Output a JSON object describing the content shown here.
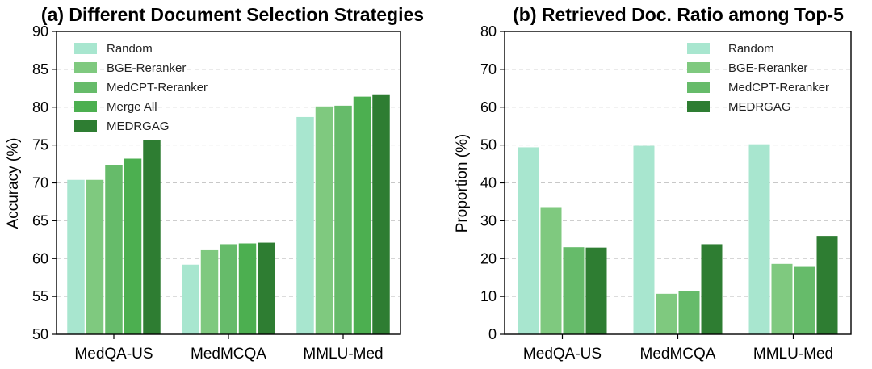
{
  "chart_data": [
    {
      "type": "bar",
      "title": "(a) Different Document Selection Strategies",
      "xlabel": "",
      "ylabel": "Accuracy (%)",
      "ylim": [
        50,
        90
      ],
      "yticks": [
        50,
        55,
        60,
        65,
        70,
        75,
        80,
        85,
        90
      ],
      "grid": true,
      "legend": "top-left",
      "categories": [
        "MedQA-US",
        "MedMCQA",
        "MMLU-Med"
      ],
      "series": [
        {
          "name": "Random",
          "color": "#a8e6cf",
          "values": [
            70.4,
            59.2,
            78.7
          ]
        },
        {
          "name": "BGE-Reranker",
          "color": "#7fc97f",
          "values": [
            70.4,
            61.1,
            80.1
          ]
        },
        {
          "name": "MedCPT-Reranker",
          "color": "#66bb6a",
          "values": [
            72.4,
            61.9,
            80.2
          ]
        },
        {
          "name": "Merge All",
          "color": "#4caf50",
          "values": [
            73.2,
            62.0,
            81.4
          ]
        },
        {
          "name": "MEDRGAG",
          "color": "#2e7d32",
          "values": [
            75.6,
            62.1,
            81.6
          ]
        }
      ]
    },
    {
      "type": "bar",
      "title": "(b) Retrieved Doc. Ratio among Top-5",
      "xlabel": "",
      "ylabel": "Proportion (%)",
      "ylim": [
        0,
        80
      ],
      "yticks": [
        0,
        10,
        20,
        30,
        40,
        50,
        60,
        70,
        80
      ],
      "grid": true,
      "legend": "top-right",
      "categories": [
        "MedQA-US",
        "MedMCQA",
        "MMLU-Med"
      ],
      "series": [
        {
          "name": "Random",
          "color": "#a8e6cf",
          "values": [
            49.4,
            49.8,
            50.2
          ]
        },
        {
          "name": "BGE-Reranker",
          "color": "#7fc97f",
          "values": [
            33.6,
            10.7,
            18.6
          ]
        },
        {
          "name": "MedCPT-Reranker",
          "color": "#66bb6a",
          "values": [
            23.0,
            11.4,
            17.8
          ]
        },
        {
          "name": "MEDRGAG",
          "color": "#2e7d32",
          "values": [
            22.9,
            23.8,
            26.0
          ]
        }
      ]
    }
  ]
}
